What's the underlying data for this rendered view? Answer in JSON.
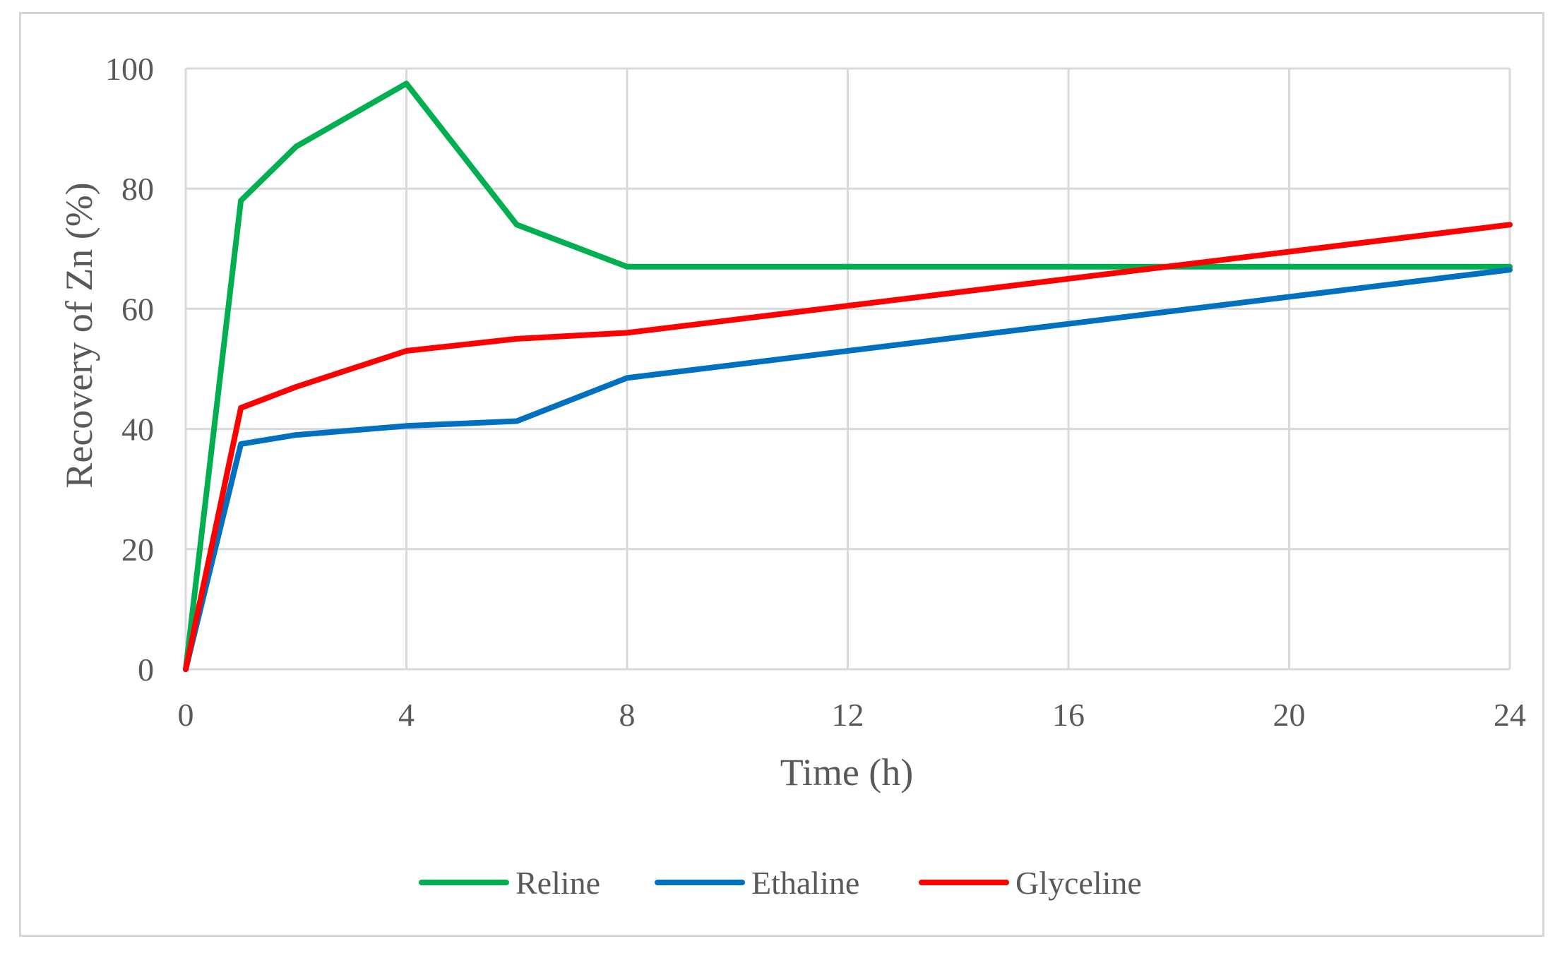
{
  "chart_data": {
    "type": "line",
    "title": "",
    "xlabel": "Time (h)",
    "ylabel": "Recovery of Zn (%)",
    "xlim": [
      0,
      24
    ],
    "ylim": [
      0,
      100
    ],
    "xticks": [
      0,
      4,
      8,
      12,
      16,
      20,
      24
    ],
    "yticks": [
      0,
      20,
      40,
      60,
      80,
      100
    ],
    "grid": true,
    "legend_position": "bottom",
    "series": [
      {
        "name": "Reline",
        "color": "#00b050",
        "points": [
          [
            0,
            0
          ],
          [
            1,
            78
          ],
          [
            2,
            87
          ],
          [
            4,
            97.5
          ],
          [
            6,
            74
          ],
          [
            8,
            67
          ],
          [
            24,
            67
          ]
        ]
      },
      {
        "name": "Ethaline",
        "color": "#0070c0",
        "points": [
          [
            0,
            0
          ],
          [
            1,
            37.5
          ],
          [
            2,
            39
          ],
          [
            4,
            40.5
          ],
          [
            6,
            41.3
          ],
          [
            8,
            48.5
          ],
          [
            24,
            66.5
          ]
        ]
      },
      {
        "name": "Glyceline",
        "color": "#ff0000",
        "points": [
          [
            0,
            0
          ],
          [
            1,
            43.5
          ],
          [
            2,
            47
          ],
          [
            4,
            53
          ],
          [
            6,
            55
          ],
          [
            8,
            56
          ],
          [
            24,
            74
          ]
        ]
      }
    ]
  }
}
